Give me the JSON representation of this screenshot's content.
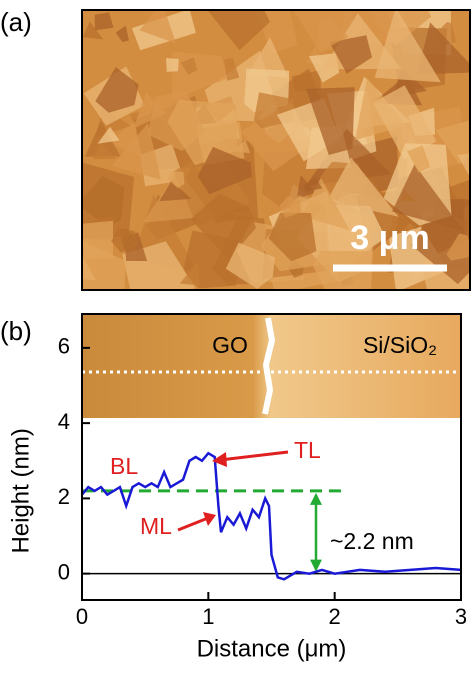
{
  "panel_a": {
    "label": "(a)",
    "scale_bar": "3 μm"
  },
  "chart_data": {
    "type": "line",
    "panel_label": "(b)",
    "x_label": "Distance (μm)",
    "y_label": "Height (nm)",
    "xlim": [
      0,
      3
    ],
    "ylim": [
      -0.7,
      6.9
    ],
    "xticks": [
      0,
      1,
      2,
      3
    ],
    "yticks": [
      0,
      2,
      4,
      6
    ],
    "x": [
      0,
      0.05,
      0.1,
      0.15,
      0.2,
      0.25,
      0.3,
      0.35,
      0.4,
      0.45,
      0.5,
      0.55,
      0.6,
      0.65,
      0.7,
      0.75,
      0.8,
      0.85,
      0.9,
      0.95,
      1.0,
      1.05,
      1.08,
      1.1,
      1.15,
      1.2,
      1.25,
      1.3,
      1.35,
      1.4,
      1.45,
      1.48,
      1.5,
      1.55,
      1.6,
      1.7,
      1.8,
      1.9,
      2.0,
      2.2,
      2.4,
      2.6,
      2.8,
      3.0
    ],
    "series": [
      {
        "color": "#1a1ad6",
        "values": [
          2.1,
          2.3,
          2.2,
          2.3,
          2.1,
          2.2,
          2.3,
          1.8,
          2.3,
          2.4,
          2.3,
          2.4,
          2.3,
          2.7,
          2.3,
          2.4,
          2.5,
          3.0,
          3.1,
          3.0,
          3.2,
          3.1,
          1.8,
          1.1,
          1.5,
          1.3,
          1.6,
          1.2,
          1.7,
          1.5,
          2.0,
          1.8,
          0.5,
          -0.1,
          -0.15,
          0.05,
          0.0,
          0.1,
          0.0,
          0.1,
          0.05,
          0.1,
          0.15,
          0.1
        ]
      }
    ],
    "reference_line": {
      "value": 2.2,
      "color": "#22aa33"
    },
    "zero_line": 0,
    "annotations": [
      {
        "text": "GO",
        "color": "#000000"
      },
      {
        "text": "Si/SiO₂",
        "color": "#000000"
      },
      {
        "text": "BL",
        "color": "#e02020"
      },
      {
        "text": "TL",
        "color": "#e02020"
      },
      {
        "text": "ML",
        "color": "#e02020"
      },
      {
        "text": "~2.2 nm",
        "color": "#000000"
      }
    ]
  }
}
